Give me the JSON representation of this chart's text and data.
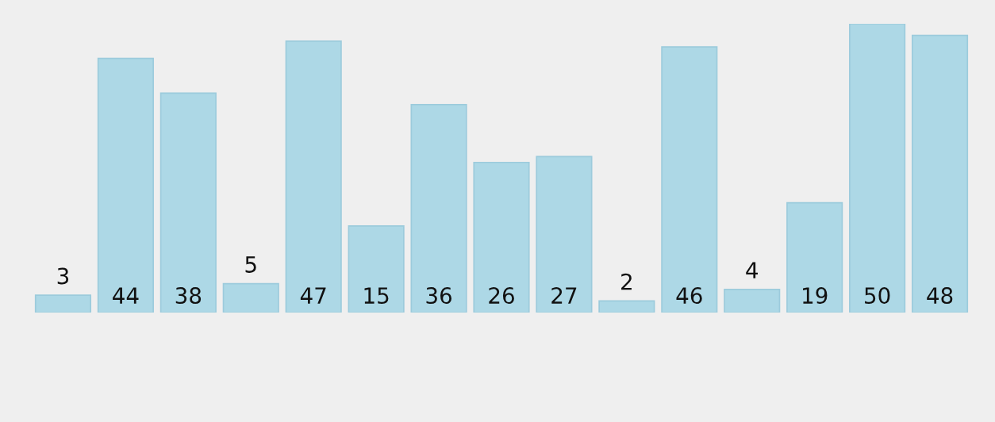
{
  "chart_data": {
    "type": "bar",
    "categories": [
      null,
      null,
      null,
      null,
      null,
      null,
      null,
      null,
      null,
      null,
      null,
      null,
      null,
      null,
      null
    ],
    "values": [
      3,
      44,
      38,
      5,
      47,
      15,
      36,
      26,
      27,
      2,
      46,
      4,
      19,
      50,
      48
    ],
    "color": "#add8e6",
    "data_labels": true,
    "grid": false,
    "legend": false
  }
}
